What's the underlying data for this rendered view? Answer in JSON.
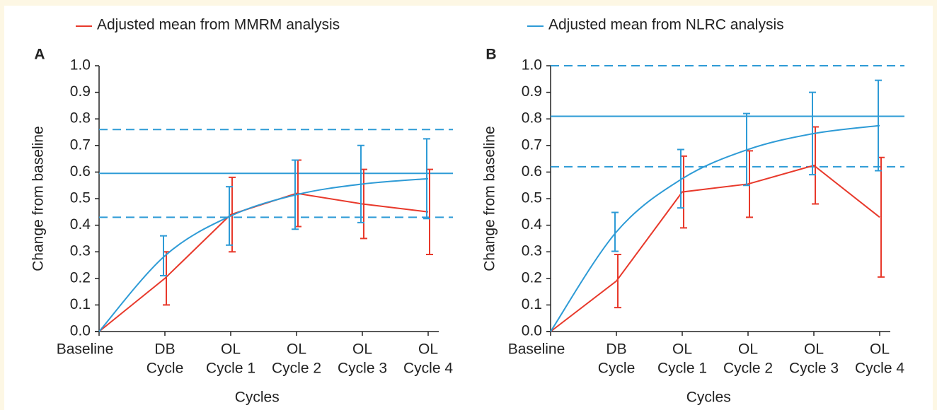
{
  "chart_data": [
    {
      "type": "line",
      "label": "A",
      "y_label": "Change from baseline",
      "x_label": "Cycles",
      "categories": [
        [
          "Baseline"
        ],
        [
          "DB",
          "Cycle"
        ],
        [
          "OL",
          "Cycle 1"
        ],
        [
          "OL",
          "Cycle 2"
        ],
        [
          "OL",
          "Cycle 3"
        ],
        [
          "OL",
          "Cycle 4"
        ]
      ],
      "ylim": [
        0,
        1
      ],
      "yticks": [
        {
          "value": 0,
          "label": "0.0"
        },
        0.1,
        0.2,
        0.3,
        0.4,
        0.5,
        0.6,
        0.7,
        0.8,
        0.9,
        {
          "value": 1,
          "label": "1.0"
        }
      ],
      "grid": false,
      "reference_lines": [
        {
          "value": 0.595,
          "style": "solid",
          "color": "#2e9bd6"
        },
        {
          "value": 0.76,
          "style": "dashed",
          "color": "#2e9bd6"
        },
        {
          "value": 0.43,
          "style": "dashed",
          "color": "#2e9bd6"
        }
      ],
      "series": [
        {
          "name": "Adjusted mean from MMRM analysis",
          "color": "#e8392b",
          "smooth": false,
          "values": [
            0,
            0.2,
            0.44,
            0.52,
            0.48,
            0.45
          ],
          "errors": [
            null,
            0.1,
            0.14,
            0.125,
            0.13,
            0.16
          ]
        },
        {
          "color": "#2e9bd6",
          "smooth": true,
          "values": [
            0,
            0.285,
            0.435,
            0.515,
            0.555,
            0.575
          ],
          "errors": [
            null,
            0.075,
            0.11,
            0.13,
            0.145,
            0.15
          ]
        }
      ]
    },
    {
      "type": "line",
      "label": "B",
      "y_label": "Change from baseline",
      "x_label": "Cycles",
      "categories": [
        [
          "Baseline"
        ],
        [
          "DB",
          "Cycle"
        ],
        [
          "OL",
          "Cycle 1"
        ],
        [
          "OL",
          "Cycle 2"
        ],
        [
          "OL",
          "Cycle 3"
        ],
        [
          "OL",
          "Cycle 4"
        ]
      ],
      "ylim": [
        0,
        1
      ],
      "yticks": [
        {
          "value": 0,
          "label": "0.0"
        },
        0.1,
        0.2,
        0.3,
        0.4,
        0.5,
        0.6,
        0.7,
        0.8,
        0.9,
        {
          "value": 1,
          "label": "1.0"
        }
      ],
      "grid": false,
      "reference_lines": [
        {
          "value": 0.81,
          "style": "solid",
          "color": "#2e9bd6"
        },
        {
          "value": 1,
          "style": "dashed",
          "color": "#2e9bd6"
        },
        {
          "value": 0.62,
          "style": "dashed",
          "color": "#2e9bd6"
        }
      ],
      "series": [
        {
          "color": "#e8392b",
          "smooth": false,
          "values": [
            0,
            0.19,
            0.525,
            0.555,
            0.625,
            0.43
          ],
          "errors": [
            null,
            0.1,
            0.135,
            0.125,
            0.145,
            0.225
          ]
        },
        {
          "name": "Adjusted mean from NLRC analysis",
          "color": "#2e9bd6",
          "smooth": true,
          "values": [
            0,
            0.375,
            0.575,
            0.685,
            0.745,
            0.775
          ],
          "errors": [
            null,
            0.073,
            0.11,
            0.135,
            0.155,
            0.17
          ]
        }
      ]
    }
  ]
}
